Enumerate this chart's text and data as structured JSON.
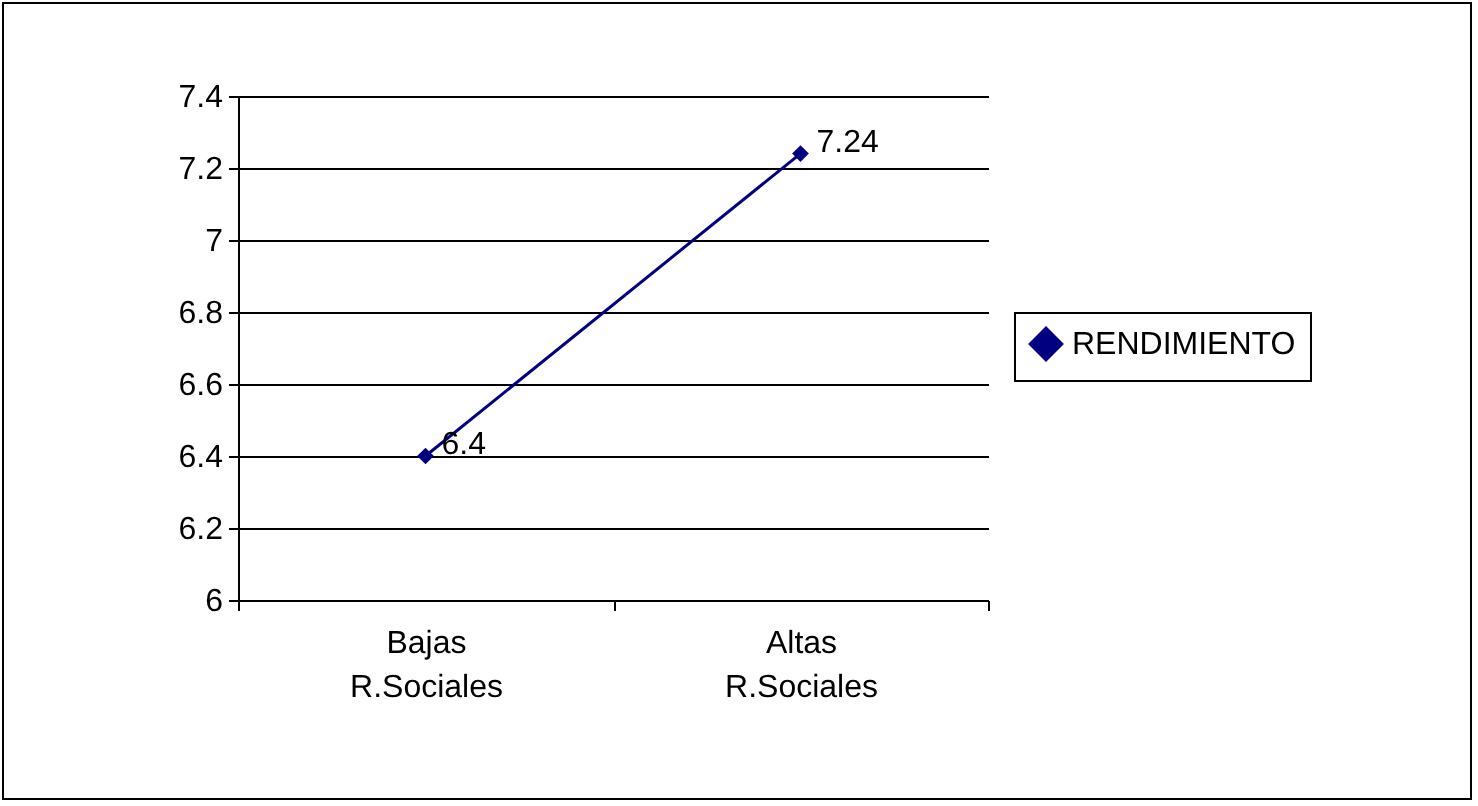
{
  "chart_data": {
    "type": "line",
    "categories": [
      "Bajas R.Sociales",
      "Altas R.Sociales"
    ],
    "series": [
      {
        "name": "RENDIMIENTO",
        "color": "#000080",
        "values": [
          6.4,
          7.24
        ]
      }
    ],
    "ylim": [
      6,
      7.4
    ],
    "yticks": [
      6,
      6.2,
      6.4,
      6.6,
      6.8,
      7,
      7.2,
      7.4
    ],
    "grid": "y",
    "legend": "right",
    "marker": "diamond",
    "line_style": "solid",
    "data_labels": true
  }
}
